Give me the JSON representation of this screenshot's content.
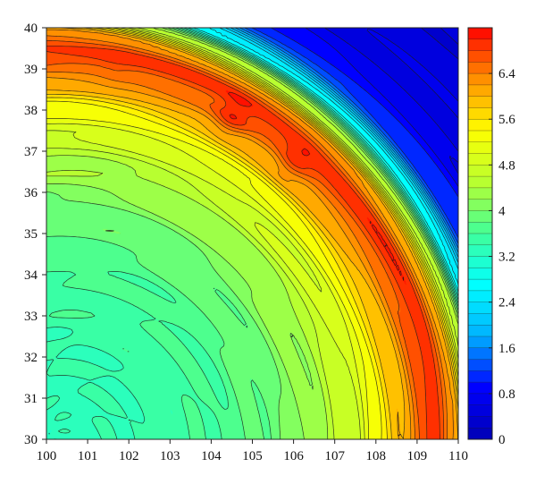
{
  "chart_data": {
    "type": "heatmap",
    "subtype": "filled-contour",
    "title": "",
    "xlabel": "",
    "ylabel": "",
    "xlim": [
      100,
      110
    ],
    "ylim": [
      30,
      40
    ],
    "x_ticks": [
      100,
      101,
      102,
      103,
      104,
      105,
      106,
      107,
      108,
      109,
      110
    ],
    "y_ticks": [
      30,
      31,
      32,
      33,
      34,
      35,
      36,
      37,
      38,
      39,
      40
    ],
    "colorbar": {
      "range": [
        0,
        7.2
      ],
      "level_step": 0.2,
      "tick_values": [
        0,
        0.8,
        1.6,
        2.4,
        3.2,
        4,
        4.8,
        5.6,
        6.4
      ],
      "tick_labels": [
        "0",
        "0.8",
        "1.6",
        "2.4",
        "3.2",
        "4",
        "4.8",
        "5.6",
        "6.4"
      ],
      "colormap": "jet",
      "colormap_stops": [
        "#0000b4",
        "#0000ff",
        "#00b0ff",
        "#00ffff",
        "#40ff9a",
        "#b8ff30",
        "#ffff00",
        "#ff9000",
        "#ff0000"
      ]
    },
    "field": {
      "description": "Concentric ring pattern centered near (100, 30); values rise from about 3.3 near the center to a peak ring of about 6.9 at roughly 9.5 degrees radius, then drop to about 0.4 toward the upper-right corner.",
      "center": [
        100,
        30
      ],
      "radial_profile": [
        {
          "r": 0.0,
          "v": 3.3
        },
        {
          "r": 2.0,
          "v": 3.4
        },
        {
          "r": 4.0,
          "v": 3.6
        },
        {
          "r": 5.5,
          "v": 3.9
        },
        {
          "r": 6.5,
          "v": 4.3
        },
        {
          "r": 7.5,
          "v": 4.8
        },
        {
          "r": 8.0,
          "v": 5.3
        },
        {
          "r": 8.6,
          "v": 6.0
        },
        {
          "r": 9.1,
          "v": 6.6
        },
        {
          "r": 9.5,
          "v": 6.9
        },
        {
          "r": 9.9,
          "v": 6.2
        },
        {
          "r": 10.3,
          "v": 4.5
        },
        {
          "r": 10.7,
          "v": 2.6
        },
        {
          "r": 11.2,
          "v": 1.2
        },
        {
          "r": 12.0,
          "v": 0.6
        },
        {
          "r": 14.2,
          "v": 0.4
        }
      ],
      "peaks": [
        {
          "x": 104.5,
          "y": 37.8,
          "value": 7.0
        },
        {
          "x": 106.0,
          "y": 36.7,
          "value": 6.9
        },
        {
          "x": 101.7,
          "y": 39.0,
          "value": 6.7
        },
        {
          "x": 107.3,
          "y": 35.7,
          "value": 6.6
        }
      ],
      "ripple_amplitude": 0.12
    }
  },
  "colors": {
    "contour_line": "#1a1a1a",
    "axis": "#222222",
    "background": "#ffffff"
  }
}
